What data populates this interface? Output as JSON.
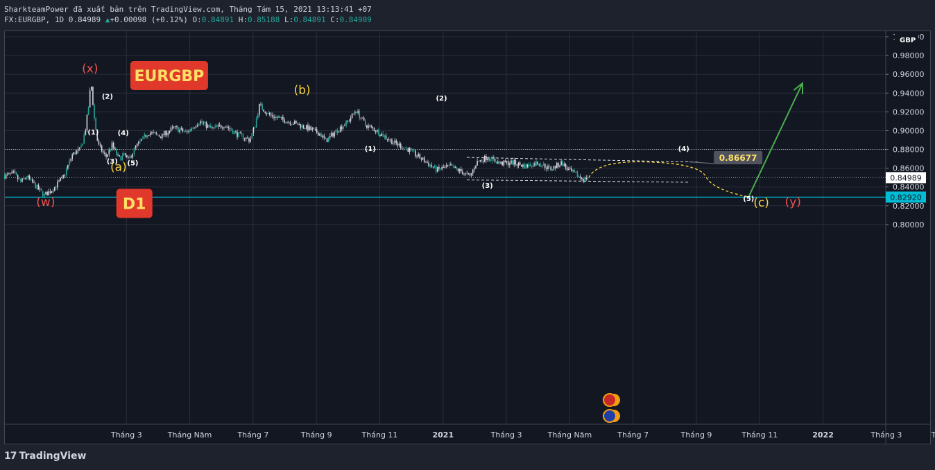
{
  "header": {
    "line1": "SharkteamPower đã xuất bản trên TradingView.com, Tháng Tám 15, 2021 13:13:41 +07",
    "symbol": "FX:EURGBP, 1D 0.84989",
    "arrow": "▲",
    "change": "+0.00098 (+0.12%)",
    "o_label": "O:",
    "o_value": "0.84891",
    "h_label": "H:",
    "h_value": "0.85188",
    "l_label": "L:",
    "l_value": "0.84891",
    "c_label": "C:",
    "c_value": "0.84989"
  },
  "footer": {
    "brand": "TradingView",
    "logo": "17"
  },
  "chart_data": {
    "type": "candlestick",
    "symbol": "EURGBP",
    "timeframe": "D1",
    "currency_label": "GBP",
    "ylim": [
      0.793,
      1.0
    ],
    "y_ticks": [
      "1.00000",
      "0.98000",
      "0.96000",
      "0.94000",
      "0.92000",
      "0.90000",
      "0.88000",
      "0.86000",
      "0.84000",
      "0.82000",
      "0.80000"
    ],
    "x_ticks": [
      {
        "t": 2,
        "label": "Tháng 3"
      },
      {
        "t": 4,
        "label": "Tháng Năm"
      },
      {
        "t": 6,
        "label": "Tháng 7"
      },
      {
        "t": 8,
        "label": "Tháng 9"
      },
      {
        "t": 10,
        "label": "Tháng 11"
      },
      {
        "t": 12,
        "label": "2021",
        "bold": true
      },
      {
        "t": 14,
        "label": "Tháng 3"
      },
      {
        "t": 16,
        "label": "Tháng Năm"
      },
      {
        "t": 18,
        "label": "Tháng 7"
      },
      {
        "t": 20,
        "label": "Tháng 9"
      },
      {
        "t": 22,
        "label": "Tháng 11"
      },
      {
        "t": 24,
        "label": "2022",
        "bold": true
      },
      {
        "t": 26,
        "label": "Tháng 3"
      },
      {
        "t": 28,
        "label": "Tháng Nă"
      }
    ],
    "price_path": [
      [
        -1.85,
        0.852
      ],
      [
        -1.55,
        0.854
      ],
      [
        -1.35,
        0.845
      ],
      [
        -1.15,
        0.851
      ],
      [
        -0.6,
        0.831
      ],
      [
        -0.35,
        0.837
      ],
      [
        0.0,
        0.85
      ],
      [
        0.3,
        0.875
      ],
      [
        0.55,
        0.88
      ],
      [
        0.7,
        0.9
      ],
      [
        0.8,
        0.925
      ],
      [
        0.88,
        0.952
      ],
      [
        0.98,
        0.915
      ],
      [
        1.1,
        0.885
      ],
      [
        1.35,
        0.872
      ],
      [
        1.55,
        0.885
      ],
      [
        1.75,
        0.87
      ],
      [
        1.95,
        0.874
      ],
      [
        2.05,
        0.868
      ],
      [
        2.3,
        0.883
      ],
      [
        2.7,
        0.898
      ],
      [
        3.1,
        0.894
      ],
      [
        3.5,
        0.903
      ],
      [
        3.9,
        0.898
      ],
      [
        4.3,
        0.91
      ],
      [
        4.7,
        0.902
      ],
      [
        5.1,
        0.906
      ],
      [
        5.5,
        0.896
      ],
      [
        5.9,
        0.89
      ],
      [
        6.05,
        0.905
      ],
      [
        6.2,
        0.927
      ],
      [
        6.5,
        0.917
      ],
      [
        6.9,
        0.912
      ],
      [
        7.3,
        0.908
      ],
      [
        7.7,
        0.903
      ],
      [
        8.1,
        0.897
      ],
      [
        8.3,
        0.889
      ],
      [
        8.6,
        0.899
      ],
      [
        9.0,
        0.91
      ],
      [
        9.25,
        0.922
      ],
      [
        9.55,
        0.906
      ],
      [
        9.9,
        0.9
      ],
      [
        10.4,
        0.888
      ],
      [
        10.9,
        0.88
      ],
      [
        11.4,
        0.868
      ],
      [
        11.8,
        0.858
      ],
      [
        12.2,
        0.862
      ],
      [
        12.6,
        0.856
      ],
      [
        12.85,
        0.851
      ],
      [
        13.05,
        0.866
      ],
      [
        13.4,
        0.872
      ],
      [
        13.8,
        0.865
      ],
      [
        14.2,
        0.866
      ],
      [
        14.6,
        0.862
      ],
      [
        15.0,
        0.866
      ],
      [
        15.4,
        0.859
      ],
      [
        15.75,
        0.866
      ],
      [
        15.95,
        0.858
      ],
      [
        16.25,
        0.852
      ],
      [
        16.45,
        0.848
      ],
      [
        16.6,
        0.851
      ]
    ],
    "current_price": "0.84989",
    "level_price": "0.82920",
    "dotted_levels": [
      0.88,
      0.85
    ],
    "triangle_upper": [
      [
        12.75,
        0.8715
      ],
      [
        20.05,
        0.8665
      ]
    ],
    "triangle_lower": [
      [
        12.75,
        0.8475
      ],
      [
        19.8,
        0.845
      ]
    ],
    "projection_curve": [
      [
        16.6,
        0.8499
      ],
      [
        18.4,
        0.8667
      ],
      [
        20.3,
        0.851
      ],
      [
        21.65,
        0.8295
      ]
    ],
    "target_box": "0.86677",
    "green_arrow": [
      [
        21.65,
        0.8295
      ],
      [
        23.35,
        0.9505
      ]
    ],
    "wave_labels": [
      {
        "text": "(x)",
        "t": 0.85,
        "p": 0.962,
        "color": "#ef5350",
        "size": 17
      },
      {
        "text": "(w)",
        "t": -0.55,
        "p": 0.82,
        "color": "#ef5350",
        "size": 17
      },
      {
        "text": "(a)",
        "t": 1.75,
        "p": 0.857,
        "color": "#f9d342",
        "size": 17
      },
      {
        "text": "(b)",
        "t": 7.55,
        "p": 0.939,
        "color": "#f9d342",
        "size": 17
      },
      {
        "text": "(c)",
        "t": 22.05,
        "p": 0.819,
        "color": "#f9d342",
        "size": 17
      },
      {
        "text": "(y)",
        "t": 23.05,
        "p": 0.82,
        "color": "#ef5350",
        "size": 17
      },
      {
        "text": "(1)",
        "t": 0.95,
        "p": 0.896,
        "color": "#ffffff",
        "size": 10
      },
      {
        "text": "(2)",
        "t": 1.4,
        "p": 0.934,
        "color": "#ffffff",
        "size": 10
      },
      {
        "text": "(3)",
        "t": 1.55,
        "p": 0.865,
        "color": "#ffffff",
        "size": 10
      },
      {
        "text": "(4)",
        "t": 1.9,
        "p": 0.895,
        "color": "#ffffff",
        "size": 10
      },
      {
        "text": "(5)",
        "t": 2.2,
        "p": 0.863,
        "color": "#ffffff",
        "size": 10
      },
      {
        "text": "(1)",
        "t": 9.7,
        "p": 0.878,
        "color": "#ffffff",
        "size": 10
      },
      {
        "text": "(2)",
        "t": 11.95,
        "p": 0.932,
        "color": "#ffffff",
        "size": 10
      },
      {
        "text": "(3)",
        "t": 13.4,
        "p": 0.839,
        "color": "#ffffff",
        "size": 10
      },
      {
        "text": "(4)",
        "t": 19.6,
        "p": 0.878,
        "color": "#ffffff",
        "size": 10
      },
      {
        "text": "(5)",
        "t": 21.65,
        "p": 0.825,
        "color": "#ffffff",
        "size": 10
      }
    ],
    "title_badges": [
      {
        "text": "EURGBP",
        "t": 3.35,
        "p": 0.9587
      },
      {
        "text": "D1",
        "t": 2.25,
        "p": 0.8225
      }
    ],
    "colors": {
      "background": "#131722",
      "candle": "#d1d4dc",
      "candle_accent": "#26a69a",
      "level_line": "#00bcd4",
      "badge": "#e0392b",
      "badge_text": "#ffe066",
      "projection": "#f9d342",
      "arrow": "#4caf50",
      "grid": "#2a2e39"
    }
  }
}
